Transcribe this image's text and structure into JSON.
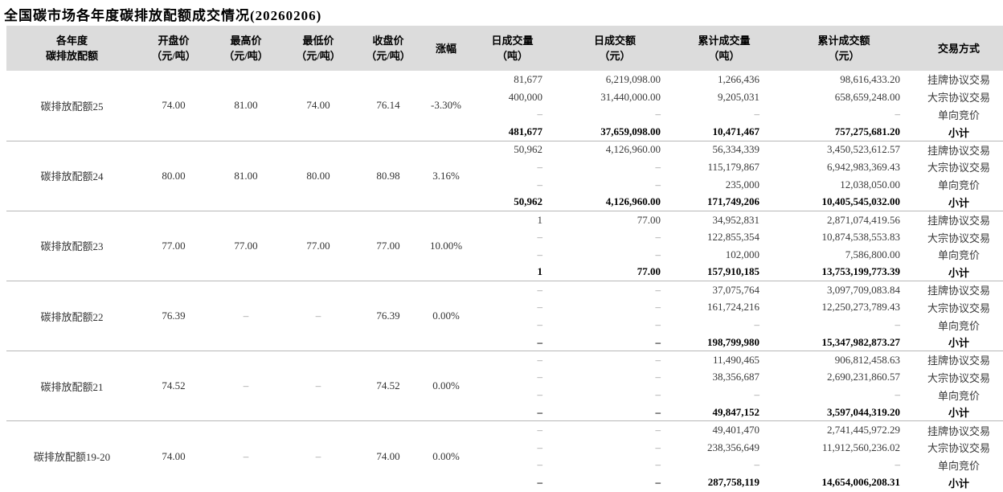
{
  "accent_colors": {
    "header_bg": "#dcdcdc",
    "group_divider": "#b7b7b7",
    "text": "#262626"
  },
  "chart_data": {
    "type": "table",
    "title": "全国碳市场各年度碳排放配额成交情况(20260206)",
    "columns": [
      {
        "line1": "各年度",
        "line2": "碳排放配额"
      },
      {
        "line1": "开盘价",
        "line2": "（元/吨）"
      },
      {
        "line1": "最高价",
        "line2": "（元/吨）"
      },
      {
        "line1": "最低价",
        "line2": "（元/吨）"
      },
      {
        "line1": "收盘价",
        "line2": "（元/吨）"
      },
      {
        "line1": "涨幅",
        "line2": ""
      },
      {
        "line1": "日成交量",
        "line2": "（吨）"
      },
      {
        "line1": "日成交额",
        "line2": "（元）"
      },
      {
        "line1": "累计成交量",
        "line2": "（吨）"
      },
      {
        "line1": "累计成交额",
        "line2": "（元）"
      },
      {
        "line1": "交易方式",
        "line2": ""
      }
    ],
    "groups": [
      {
        "name": "碳排放配额25",
        "open": "74.00",
        "high": "81.00",
        "low": "74.00",
        "close": "76.14",
        "change": "-3.30%",
        "rows": [
          {
            "daily_volume": "81,677",
            "daily_amount": "6,219,098.00",
            "cum_volume": "1,266,436",
            "cum_amount": "98,616,433.20",
            "method": "挂牌协议交易",
            "subtotal": false
          },
          {
            "daily_volume": "400,000",
            "daily_amount": "31,440,000.00",
            "cum_volume": "9,205,031",
            "cum_amount": "658,659,248.00",
            "method": "大宗协议交易",
            "subtotal": false
          },
          {
            "daily_volume": "–",
            "daily_amount": "–",
            "cum_volume": "–",
            "cum_amount": "–",
            "method": "单向竞价",
            "subtotal": false
          },
          {
            "daily_volume": "481,677",
            "daily_amount": "37,659,098.00",
            "cum_volume": "10,471,467",
            "cum_amount": "757,275,681.20",
            "method": "小计",
            "subtotal": true
          }
        ]
      },
      {
        "name": "碳排放配额24",
        "open": "80.00",
        "high": "81.00",
        "low": "80.00",
        "close": "80.98",
        "change": "3.16%",
        "rows": [
          {
            "daily_volume": "50,962",
            "daily_amount": "4,126,960.00",
            "cum_volume": "56,334,339",
            "cum_amount": "3,450,523,612.57",
            "method": "挂牌协议交易",
            "subtotal": false
          },
          {
            "daily_volume": "–",
            "daily_amount": "–",
            "cum_volume": "115,179,867",
            "cum_amount": "6,942,983,369.43",
            "method": "大宗协议交易",
            "subtotal": false
          },
          {
            "daily_volume": "–",
            "daily_amount": "–",
            "cum_volume": "235,000",
            "cum_amount": "12,038,050.00",
            "method": "单向竞价",
            "subtotal": false
          },
          {
            "daily_volume": "50,962",
            "daily_amount": "4,126,960.00",
            "cum_volume": "171,749,206",
            "cum_amount": "10,405,545,032.00",
            "method": "小计",
            "subtotal": true
          }
        ]
      },
      {
        "name": "碳排放配额23",
        "open": "77.00",
        "high": "77.00",
        "low": "77.00",
        "close": "77.00",
        "change": "10.00%",
        "rows": [
          {
            "daily_volume": "1",
            "daily_amount": "77.00",
            "cum_volume": "34,952,831",
            "cum_amount": "2,871,074,419.56",
            "method": "挂牌协议交易",
            "subtotal": false
          },
          {
            "daily_volume": "–",
            "daily_amount": "–",
            "cum_volume": "122,855,354",
            "cum_amount": "10,874,538,553.83",
            "method": "大宗协议交易",
            "subtotal": false
          },
          {
            "daily_volume": "–",
            "daily_amount": "–",
            "cum_volume": "102,000",
            "cum_amount": "7,586,800.00",
            "method": "单向竞价",
            "subtotal": false
          },
          {
            "daily_volume": "1",
            "daily_amount": "77.00",
            "cum_volume": "157,910,185",
            "cum_amount": "13,753,199,773.39",
            "method": "小计",
            "subtotal": true
          }
        ]
      },
      {
        "name": "碳排放配额22",
        "open": "76.39",
        "high": "–",
        "low": "–",
        "close": "76.39",
        "change": "0.00%",
        "rows": [
          {
            "daily_volume": "–",
            "daily_amount": "–",
            "cum_volume": "37,075,764",
            "cum_amount": "3,097,709,083.84",
            "method": "挂牌协议交易",
            "subtotal": false
          },
          {
            "daily_volume": "–",
            "daily_amount": "–",
            "cum_volume": "161,724,216",
            "cum_amount": "12,250,273,789.43",
            "method": "大宗协议交易",
            "subtotal": false
          },
          {
            "daily_volume": "–",
            "daily_amount": "–",
            "cum_volume": "–",
            "cum_amount": "–",
            "method": "单向竞价",
            "subtotal": false
          },
          {
            "daily_volume": "–",
            "daily_amount": "–",
            "cum_volume": "198,799,980",
            "cum_amount": "15,347,982,873.27",
            "method": "小计",
            "subtotal": true
          }
        ]
      },
      {
        "name": "碳排放配额21",
        "open": "74.52",
        "high": "–",
        "low": "–",
        "close": "74.52",
        "change": "0.00%",
        "rows": [
          {
            "daily_volume": "–",
            "daily_amount": "–",
            "cum_volume": "11,490,465",
            "cum_amount": "906,812,458.63",
            "method": "挂牌协议交易",
            "subtotal": false
          },
          {
            "daily_volume": "–",
            "daily_amount": "–",
            "cum_volume": "38,356,687",
            "cum_amount": "2,690,231,860.57",
            "method": "大宗协议交易",
            "subtotal": false
          },
          {
            "daily_volume": "–",
            "daily_amount": "–",
            "cum_volume": "–",
            "cum_amount": "–",
            "method": "单向竞价",
            "subtotal": false
          },
          {
            "daily_volume": "–",
            "daily_amount": "–",
            "cum_volume": "49,847,152",
            "cum_amount": "3,597,044,319.20",
            "method": "小计",
            "subtotal": true
          }
        ]
      },
      {
        "name": "碳排放配额19-20",
        "open": "74.00",
        "high": "–",
        "low": "–",
        "close": "74.00",
        "change": "0.00%",
        "rows": [
          {
            "daily_volume": "–",
            "daily_amount": "–",
            "cum_volume": "49,401,470",
            "cum_amount": "2,741,445,972.29",
            "method": "挂牌协议交易",
            "subtotal": false
          },
          {
            "daily_volume": "–",
            "daily_amount": "–",
            "cum_volume": "238,356,649",
            "cum_amount": "11,912,560,236.02",
            "method": "大宗协议交易",
            "subtotal": false
          },
          {
            "daily_volume": "–",
            "daily_amount": "–",
            "cum_volume": "–",
            "cum_amount": "–",
            "method": "单向竞价",
            "subtotal": false
          },
          {
            "daily_volume": "–",
            "daily_amount": "–",
            "cum_volume": "287,758,119",
            "cum_amount": "14,654,006,208.31",
            "method": "小计",
            "subtotal": true
          }
        ]
      }
    ]
  }
}
